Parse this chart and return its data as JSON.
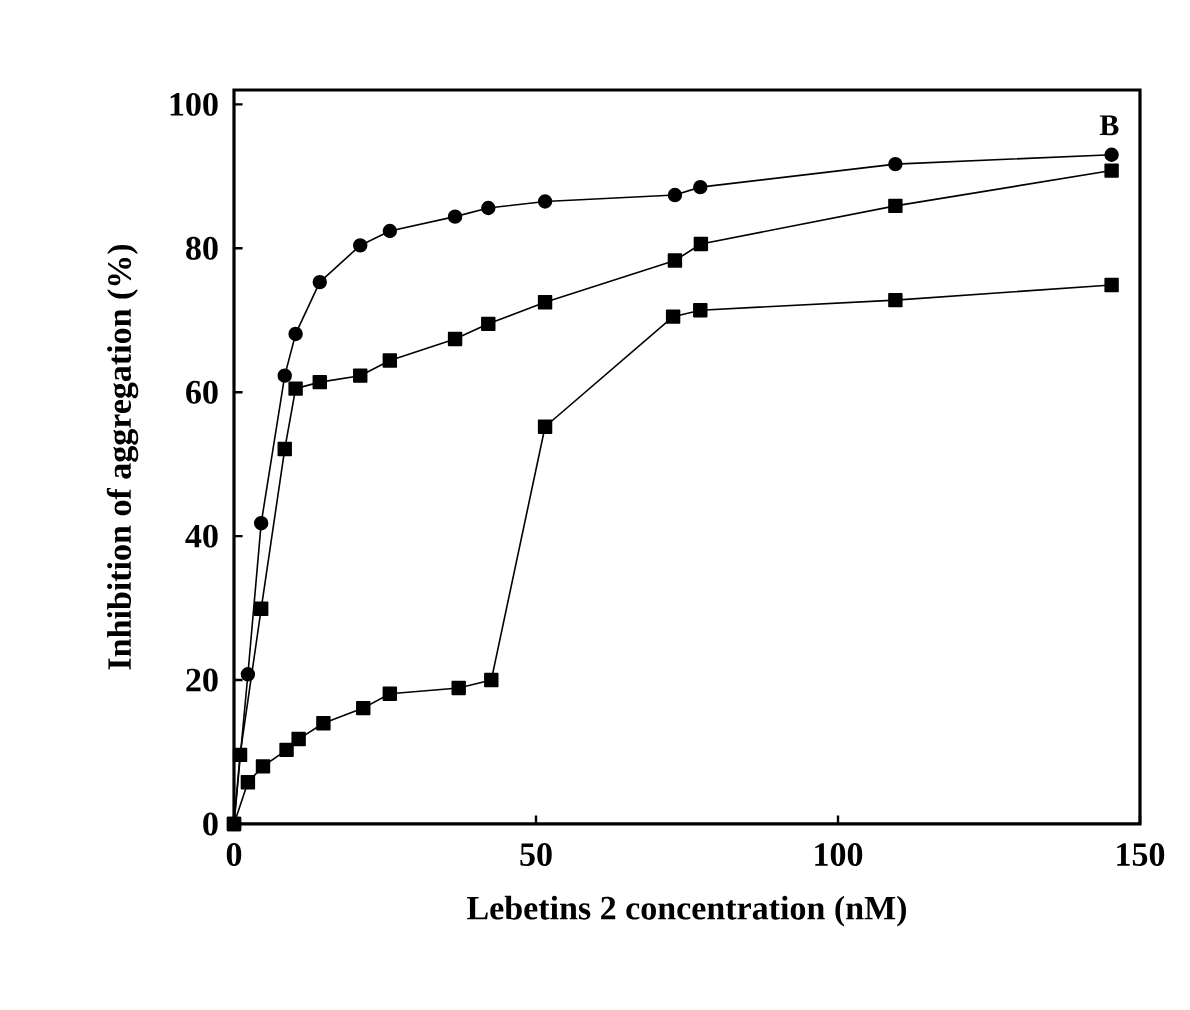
{
  "chart_data": {
    "type": "line",
    "xlabel": "Lebetins 2 concentration (nM)",
    "ylabel": "Inhibition of aggregation (%)",
    "annotations": [
      "B"
    ],
    "xlim": [
      0,
      150
    ],
    "ylim": [
      0,
      102
    ],
    "xticks": [
      0,
      50,
      100,
      150
    ],
    "yticks": [
      0,
      20,
      40,
      60,
      80,
      100
    ],
    "grid": false,
    "line_style": "solid",
    "series": [
      {
        "color": "#000000",
        "marker": "circle",
        "x": [
          0,
          2.3,
          4.5,
          8.4,
          10.2,
          14.2,
          20.9,
          25.8,
          36.6,
          42.1,
          51.5,
          73,
          77.2,
          109.5,
          145.3
        ],
        "values": [
          0,
          20.8,
          41.8,
          62.3,
          68.1,
          75.3,
          80.4,
          82.4,
          84.4,
          85.6,
          86.5,
          87.4,
          88.5,
          91.7,
          93
        ]
      },
      {
        "color": "#000000",
        "marker": "square",
        "x": [
          0,
          1,
          4.5,
          8.4,
          10.2,
          14.2,
          20.9,
          25.8,
          36.6,
          42.1,
          51.5,
          73,
          77.3,
          109.5,
          145.3
        ],
        "values": [
          0,
          9.6,
          29.9,
          52.1,
          60.5,
          61.4,
          62.3,
          64.4,
          67.4,
          69.5,
          72.5,
          78.3,
          80.6,
          85.9,
          90.8
        ]
      },
      {
        "color": "#000000",
        "marker": "square",
        "x": [
          0,
          2.3,
          4.8,
          8.7,
          10.7,
          14.8,
          21.4,
          25.8,
          37.2,
          42.6,
          51.5,
          72.7,
          77.2,
          109.5,
          145.3
        ],
        "values": [
          0,
          5.8,
          8,
          10.3,
          11.8,
          14,
          16.1,
          18.1,
          18.9,
          20,
          55.2,
          70.5,
          71.4,
          72.8,
          74.9
        ]
      }
    ]
  }
}
